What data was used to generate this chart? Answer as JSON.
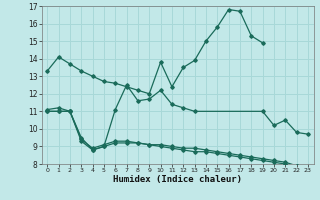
{
  "title": "",
  "xlabel": "Humidex (Indice chaleur)",
  "bg_color": "#c2e8e8",
  "grid_color": "#a8d8d8",
  "line_color": "#1a6b5a",
  "xlim": [
    -0.5,
    23.5
  ],
  "ylim": [
    8,
    17
  ],
  "yticks": [
    8,
    9,
    10,
    11,
    12,
    13,
    14,
    15,
    16,
    17
  ],
  "xticks": [
    0,
    1,
    2,
    3,
    4,
    5,
    6,
    7,
    8,
    9,
    10,
    11,
    12,
    13,
    14,
    15,
    16,
    17,
    18,
    19,
    20,
    21,
    22,
    23
  ],
  "series": [
    {
      "x": [
        0,
        1,
        2,
        3,
        4,
        5,
        6,
        7,
        8,
        9,
        10,
        11,
        12,
        13,
        14,
        15,
        16,
        17,
        18,
        19,
        20,
        21,
        22
      ],
      "y": [
        13.3,
        14.1,
        13.7,
        13.3,
        13.0,
        12.7,
        12.6,
        12.4,
        12.2,
        12.0,
        13.8,
        12.4,
        13.5,
        13.9,
        15.0,
        15.8,
        16.8,
        16.7,
        15.3,
        14.9,
        null,
        null,
        null
      ]
    },
    {
      "x": [
        0,
        1,
        2,
        3,
        4,
        5,
        6,
        7,
        8,
        9,
        10,
        11,
        12,
        13,
        19,
        20,
        21,
        22,
        23
      ],
      "y": [
        11.1,
        11.2,
        11.0,
        9.5,
        8.8,
        9.0,
        11.1,
        12.5,
        11.6,
        11.7,
        12.2,
        11.4,
        11.2,
        11.0,
        11.0,
        10.2,
        10.5,
        9.8,
        9.7
      ]
    },
    {
      "x": [
        0,
        1,
        2,
        3,
        4,
        5,
        6,
        7,
        8,
        9,
        10,
        11,
        12,
        13,
        14,
        15,
        16,
        17,
        18,
        19,
        20,
        21,
        22,
        23
      ],
      "y": [
        11.0,
        11.0,
        11.0,
        9.3,
        8.8,
        9.0,
        9.2,
        9.2,
        9.2,
        9.1,
        9.0,
        8.9,
        8.8,
        8.7,
        8.7,
        8.6,
        8.5,
        8.4,
        8.3,
        8.2,
        8.1,
        8.0,
        7.9,
        7.7
      ]
    },
    {
      "x": [
        0,
        1,
        2,
        3,
        4,
        5,
        6,
        7,
        8,
        9,
        10,
        11,
        12,
        13,
        14,
        15,
        16,
        17,
        18,
        19,
        20,
        21,
        22,
        23
      ],
      "y": [
        11.0,
        11.0,
        11.0,
        9.4,
        8.9,
        9.1,
        9.3,
        9.3,
        9.2,
        9.1,
        9.1,
        9.0,
        8.9,
        8.9,
        8.8,
        8.7,
        8.6,
        8.5,
        8.4,
        8.3,
        8.2,
        8.1,
        7.9,
        7.8
      ]
    }
  ]
}
